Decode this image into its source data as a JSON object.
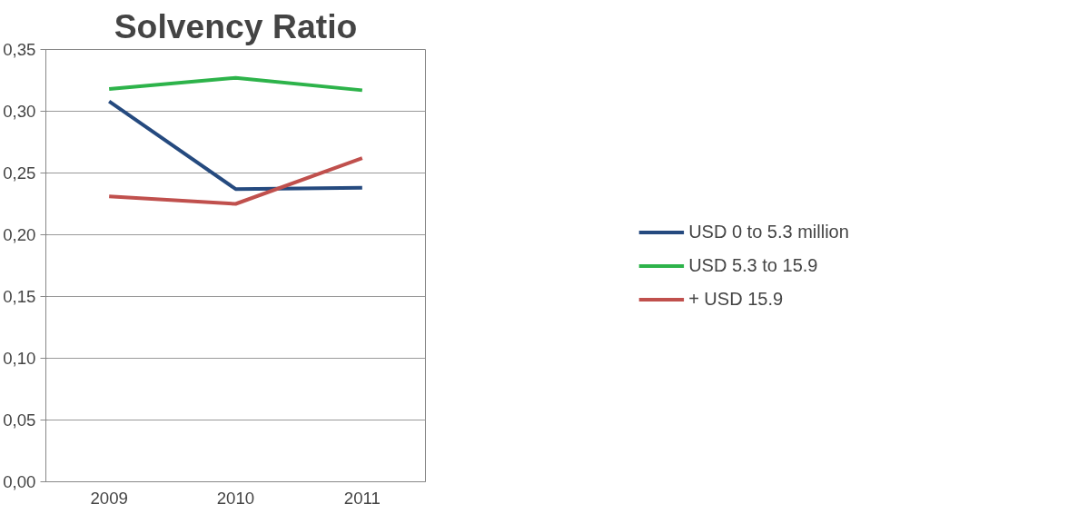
{
  "chart_data": {
    "type": "line",
    "title": "Solvency Ratio",
    "categories": [
      "2009",
      "2010",
      "2011"
    ],
    "series": [
      {
        "name": "USD 0 to 5.3 million",
        "color": "#254a7f",
        "values": [
          0.308,
          0.237,
          0.238
        ]
      },
      {
        "name": "USD 5.3 to 15.9",
        "color": "#2db34a",
        "values": [
          0.318,
          0.327,
          0.317
        ]
      },
      {
        "name": "+ USD 15.9",
        "color": "#c0504d",
        "values": [
          0.231,
          0.225,
          0.262
        ]
      }
    ],
    "ylim": [
      0,
      0.35
    ],
    "yticks": [
      {
        "value": 0,
        "label": "0,00"
      },
      {
        "value": 0.05,
        "label": "0,05"
      },
      {
        "value": 0.1,
        "label": "0,10"
      },
      {
        "value": 0.15,
        "label": "0,15"
      },
      {
        "value": 0.2,
        "label": "0,20"
      },
      {
        "value": 0.25,
        "label": "0,25"
      },
      {
        "value": 0.3,
        "label": "0,30"
      },
      {
        "value": 0.35,
        "label": "0,35"
      }
    ],
    "grid": "y",
    "legend": "right",
    "marker": "none",
    "line_style": "solid"
  }
}
